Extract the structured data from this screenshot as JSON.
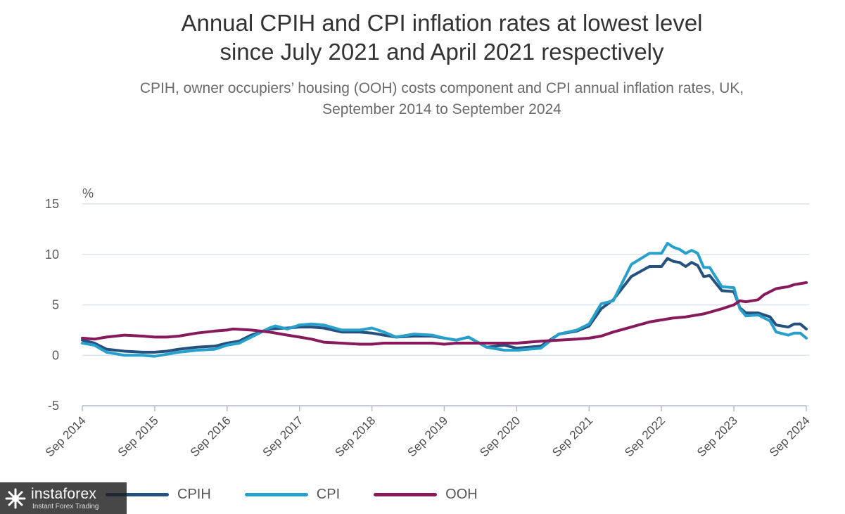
{
  "title": {
    "line1": "Annual CPIH and CPI inflation rates at lowest level",
    "line2": "since July 2021 and April 2021 respectively"
  },
  "subtitle": {
    "line1": "CPIH, owner occupiers’ housing (OOH) costs component and CPI annual inflation rates, UK,",
    "line2": "September 2014 to September 2024"
  },
  "watermark": {
    "brand": "instaforex",
    "tagline": "Instant Forex Trading"
  },
  "chart_data": {
    "type": "line",
    "unit_label": "%",
    "ylim": [
      -5,
      15
    ],
    "yticks": [
      "15",
      "10",
      "5",
      "0",
      "-5"
    ],
    "ytick_values": [
      15,
      10,
      5,
      0,
      -5
    ],
    "xlim": [
      2014.667,
      2024.667
    ],
    "xtick_labels": [
      "Sep 2014",
      "Sep 2015",
      "Sep 2016",
      "Sep 2017",
      "Sep 2018",
      "Sep 2019",
      "Sep 2020",
      "Sep 2021",
      "Sep 2022",
      "Sep 2023",
      "Sep 2024"
    ],
    "grid": "horizontal",
    "legend_position": "bottom",
    "series": [
      {
        "name": "CPIH",
        "color": "#25517f",
        "points": [
          [
            2014.667,
            1.5
          ],
          [
            2014.833,
            1.2
          ],
          [
            2015.0,
            0.6
          ],
          [
            2015.25,
            0.4
          ],
          [
            2015.5,
            0.3
          ],
          [
            2015.667,
            0.3
          ],
          [
            2015.833,
            0.4
          ],
          [
            2016.0,
            0.6
          ],
          [
            2016.25,
            0.8
          ],
          [
            2016.5,
            0.9
          ],
          [
            2016.667,
            1.2
          ],
          [
            2016.833,
            1.4
          ],
          [
            2017.0,
            2.0
          ],
          [
            2017.25,
            2.6
          ],
          [
            2017.5,
            2.7
          ],
          [
            2017.667,
            2.8
          ],
          [
            2017.833,
            2.8
          ],
          [
            2018.0,
            2.7
          ],
          [
            2018.25,
            2.3
          ],
          [
            2018.5,
            2.3
          ],
          [
            2018.667,
            2.2
          ],
          [
            2018.833,
            2.0
          ],
          [
            2019.0,
            1.8
          ],
          [
            2019.25,
            1.9
          ],
          [
            2019.5,
            1.9
          ],
          [
            2019.667,
            1.7
          ],
          [
            2019.833,
            1.5
          ],
          [
            2020.0,
            1.8
          ],
          [
            2020.25,
            0.8
          ],
          [
            2020.5,
            1.0
          ],
          [
            2020.667,
            0.7
          ],
          [
            2020.833,
            0.8
          ],
          [
            2021.0,
            0.9
          ],
          [
            2021.25,
            2.1
          ],
          [
            2021.5,
            2.4
          ],
          [
            2021.667,
            2.9
          ],
          [
            2021.833,
            4.6
          ],
          [
            2022.0,
            5.5
          ],
          [
            2022.25,
            7.8
          ],
          [
            2022.5,
            8.8
          ],
          [
            2022.667,
            8.8
          ],
          [
            2022.75,
            9.6
          ],
          [
            2022.833,
            9.3
          ],
          [
            2022.917,
            9.2
          ],
          [
            2023.0,
            8.8
          ],
          [
            2023.083,
            9.2
          ],
          [
            2023.167,
            8.9
          ],
          [
            2023.25,
            7.8
          ],
          [
            2023.333,
            7.9
          ],
          [
            2023.5,
            6.4
          ],
          [
            2023.667,
            6.3
          ],
          [
            2023.75,
            4.7
          ],
          [
            2023.833,
            4.2
          ],
          [
            2024.0,
            4.2
          ],
          [
            2024.167,
            3.8
          ],
          [
            2024.25,
            3.0
          ],
          [
            2024.417,
            2.8
          ],
          [
            2024.5,
            3.1
          ],
          [
            2024.583,
            3.1
          ],
          [
            2024.667,
            2.6
          ]
        ]
      },
      {
        "name": "CPI",
        "color": "#27a0cc",
        "points": [
          [
            2014.667,
            1.2
          ],
          [
            2014.833,
            1.0
          ],
          [
            2015.0,
            0.3
          ],
          [
            2015.25,
            0.0
          ],
          [
            2015.5,
            0.0
          ],
          [
            2015.667,
            -0.1
          ],
          [
            2015.833,
            0.1
          ],
          [
            2016.0,
            0.3
          ],
          [
            2016.25,
            0.5
          ],
          [
            2016.5,
            0.6
          ],
          [
            2016.667,
            1.0
          ],
          [
            2016.833,
            1.2
          ],
          [
            2017.0,
            1.8
          ],
          [
            2017.25,
            2.7
          ],
          [
            2017.333,
            2.9
          ],
          [
            2017.5,
            2.6
          ],
          [
            2017.667,
            3.0
          ],
          [
            2017.833,
            3.1
          ],
          [
            2018.0,
            3.0
          ],
          [
            2018.25,
            2.5
          ],
          [
            2018.5,
            2.5
          ],
          [
            2018.667,
            2.7
          ],
          [
            2018.833,
            2.3
          ],
          [
            2019.0,
            1.8
          ],
          [
            2019.25,
            2.1
          ],
          [
            2019.5,
            2.0
          ],
          [
            2019.667,
            1.7
          ],
          [
            2019.833,
            1.5
          ],
          [
            2020.0,
            1.8
          ],
          [
            2020.25,
            0.8
          ],
          [
            2020.5,
            0.5
          ],
          [
            2020.667,
            0.5
          ],
          [
            2020.833,
            0.6
          ],
          [
            2021.0,
            0.7
          ],
          [
            2021.25,
            2.1
          ],
          [
            2021.5,
            2.5
          ],
          [
            2021.667,
            3.1
          ],
          [
            2021.833,
            5.1
          ],
          [
            2022.0,
            5.4
          ],
          [
            2022.25,
            9.0
          ],
          [
            2022.5,
            10.1
          ],
          [
            2022.667,
            10.1
          ],
          [
            2022.75,
            11.1
          ],
          [
            2022.833,
            10.7
          ],
          [
            2022.917,
            10.5
          ],
          [
            2023.0,
            10.1
          ],
          [
            2023.083,
            10.4
          ],
          [
            2023.167,
            10.1
          ],
          [
            2023.25,
            8.7
          ],
          [
            2023.333,
            8.7
          ],
          [
            2023.5,
            6.8
          ],
          [
            2023.667,
            6.7
          ],
          [
            2023.75,
            4.6
          ],
          [
            2023.833,
            3.9
          ],
          [
            2024.0,
            4.0
          ],
          [
            2024.167,
            3.4
          ],
          [
            2024.25,
            2.3
          ],
          [
            2024.417,
            2.0
          ],
          [
            2024.5,
            2.2
          ],
          [
            2024.583,
            2.2
          ],
          [
            2024.667,
            1.7
          ]
        ]
      },
      {
        "name": "OOH",
        "color": "#871a5b",
        "points": [
          [
            2014.667,
            1.7
          ],
          [
            2014.833,
            1.6
          ],
          [
            2015.0,
            1.8
          ],
          [
            2015.25,
            2.0
          ],
          [
            2015.5,
            1.9
          ],
          [
            2015.667,
            1.8
          ],
          [
            2015.833,
            1.8
          ],
          [
            2016.0,
            1.9
          ],
          [
            2016.25,
            2.2
          ],
          [
            2016.5,
            2.4
          ],
          [
            2016.667,
            2.5
          ],
          [
            2016.75,
            2.6
          ],
          [
            2017.0,
            2.5
          ],
          [
            2017.25,
            2.3
          ],
          [
            2017.5,
            2.0
          ],
          [
            2017.667,
            1.8
          ],
          [
            2017.833,
            1.6
          ],
          [
            2018.0,
            1.3
          ],
          [
            2018.25,
            1.2
          ],
          [
            2018.5,
            1.1
          ],
          [
            2018.667,
            1.1
          ],
          [
            2018.833,
            1.2
          ],
          [
            2019.0,
            1.2
          ],
          [
            2019.25,
            1.2
          ],
          [
            2019.5,
            1.2
          ],
          [
            2019.667,
            1.1
          ],
          [
            2019.833,
            1.2
          ],
          [
            2020.0,
            1.2
          ],
          [
            2020.25,
            1.2
          ],
          [
            2020.5,
            1.2
          ],
          [
            2020.667,
            1.2
          ],
          [
            2020.833,
            1.3
          ],
          [
            2021.0,
            1.4
          ],
          [
            2021.25,
            1.5
          ],
          [
            2021.5,
            1.6
          ],
          [
            2021.667,
            1.7
          ],
          [
            2021.833,
            1.9
          ],
          [
            2022.0,
            2.3
          ],
          [
            2022.25,
            2.8
          ],
          [
            2022.5,
            3.3
          ],
          [
            2022.667,
            3.5
          ],
          [
            2022.833,
            3.7
          ],
          [
            2023.0,
            3.8
          ],
          [
            2023.25,
            4.1
          ],
          [
            2023.5,
            4.6
          ],
          [
            2023.667,
            5.0
          ],
          [
            2023.75,
            5.4
          ],
          [
            2023.833,
            5.3
          ],
          [
            2024.0,
            5.5
          ],
          [
            2024.083,
            6.0
          ],
          [
            2024.25,
            6.6
          ],
          [
            2024.417,
            6.8
          ],
          [
            2024.5,
            7.0
          ],
          [
            2024.583,
            7.1
          ],
          [
            2024.667,
            7.2
          ]
        ]
      }
    ]
  }
}
